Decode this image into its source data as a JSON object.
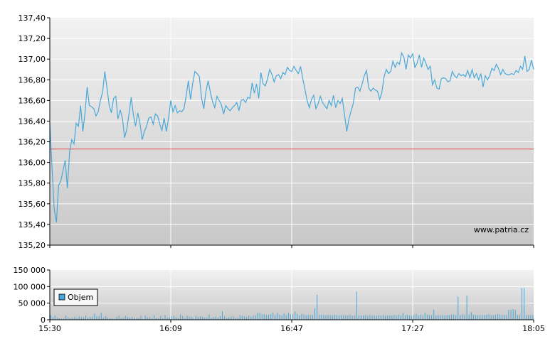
{
  "watermark": "www.patria.cz",
  "colors": {
    "price_line": "#4aa8d8",
    "reference_line": "#e05050",
    "volume_bar": "#4aa8d8",
    "plot_bg_top": "#f2f2f2",
    "plot_bg_bottom": "#c8c8c8",
    "grid": "#ffffff"
  },
  "chart_data": [
    {
      "type": "line",
      "name": "price-chart",
      "ylim": [
        135.2,
        137.4
      ],
      "yticks": [
        "135,20",
        "135,40",
        "135,60",
        "135,80",
        "136,00",
        "136,20",
        "136,40",
        "136,60",
        "136,80",
        "137,00",
        "137,20",
        "137,40"
      ],
      "xticks": [
        "15:30",
        "16:09",
        "16:47",
        "17:27",
        "18:05"
      ],
      "reference_value": 136.13,
      "grid": true,
      "series": [
        {
          "values": [
            136.38,
            135.95,
            135.55,
            135.42,
            135.78,
            135.82,
            135.92,
            136.02,
            135.75,
            136.1,
            136.22,
            136.18,
            136.38,
            136.35,
            136.55,
            136.3,
            136.48,
            136.73,
            136.55,
            136.54,
            136.52,
            136.45,
            136.49,
            136.6,
            136.68,
            136.88,
            136.72,
            136.55,
            136.48,
            136.62,
            136.64,
            136.42,
            136.51,
            136.43,
            136.24,
            136.32,
            136.47,
            136.63,
            136.46,
            136.35,
            136.48,
            136.38,
            136.22,
            136.3,
            136.35,
            136.43,
            136.44,
            136.37,
            136.47,
            136.45,
            136.37,
            136.31,
            136.43,
            136.3,
            136.43,
            136.6,
            136.49,
            136.55,
            136.48,
            136.5,
            136.49,
            136.52,
            136.64,
            136.79,
            136.61,
            136.77,
            136.88,
            136.86,
            136.83,
            136.62,
            136.52,
            136.69,
            136.79,
            136.68,
            136.59,
            136.53,
            136.64,
            136.6,
            136.56,
            136.47,
            136.55,
            136.52,
            136.5,
            136.53,
            136.55,
            136.58,
            136.5,
            136.6,
            136.61,
            136.58,
            136.63,
            136.62,
            136.77,
            136.67,
            136.76,
            136.62,
            136.87,
            136.76,
            136.74,
            136.81,
            136.9,
            136.85,
            136.78,
            136.84,
            136.85,
            136.81,
            136.87,
            136.85,
            136.92,
            136.89,
            136.88,
            136.93,
            136.89,
            136.86,
            136.93,
            136.81,
            136.71,
            136.6,
            136.53,
            136.61,
            136.65,
            136.52,
            136.57,
            136.64,
            136.58,
            136.55,
            136.52,
            136.6,
            136.55,
            136.65,
            136.53,
            136.6,
            136.57,
            136.62,
            136.46,
            136.3,
            136.42,
            136.5,
            136.57,
            136.72,
            136.73,
            136.69,
            136.76,
            136.84,
            136.89,
            136.72,
            136.69,
            136.72,
            136.7,
            136.69,
            136.61,
            136.68,
            136.83,
            136.9,
            136.86,
            136.88,
            136.98,
            136.92,
            136.97,
            136.95,
            137.06,
            137.02,
            136.9,
            137.04,
            137.01,
            137.05,
            136.92,
            136.96,
            137.04,
            136.92,
            137.01,
            136.96,
            136.9,
            136.93,
            136.75,
            136.8,
            136.72,
            136.71,
            136.81,
            136.82,
            136.81,
            136.78,
            136.79,
            136.88,
            136.84,
            136.82,
            136.86,
            136.84,
            136.85,
            136.83,
            136.89,
            136.82,
            136.9,
            136.82,
            136.86,
            136.8,
            136.86,
            136.73,
            136.84,
            136.8,
            136.84,
            136.91,
            136.89,
            136.95,
            136.91,
            136.85,
            136.9,
            136.86,
            136.85,
            136.85,
            136.86,
            136.85,
            136.89,
            136.87,
            136.93,
            136.9,
            137.03,
            136.88,
            136.9,
            136.99,
            136.9
          ]
        }
      ]
    },
    {
      "type": "bar",
      "name": "volume-chart",
      "ylim": [
        0,
        150000
      ],
      "yticks": [
        "0",
        "50 000",
        "100 000",
        "150 000"
      ],
      "xticks": [
        "15:30",
        "16:09",
        "16:47",
        "17:27",
        "18:05"
      ],
      "legend": "Objem",
      "legend_placement": "middle-left",
      "grid": true,
      "series": [
        {
          "name": "Objem",
          "values": [
            14000,
            8000,
            13000,
            6000,
            4000,
            3000,
            3000,
            13000,
            7000,
            4000,
            6000,
            9000,
            5000,
            10000,
            8000,
            7000,
            13000,
            6000,
            9000,
            10000,
            19000,
            10000,
            11000,
            22000,
            6000,
            11000,
            6000,
            4000,
            3000,
            2000,
            8000,
            12000,
            4000,
            6000,
            12000,
            8000,
            5000,
            8000,
            6000,
            3000,
            5000,
            12000,
            2000,
            12000,
            7000,
            8000,
            3000,
            14000,
            5000,
            4000,
            11000,
            4000,
            14000,
            6000,
            8000,
            10000,
            12000,
            7000,
            4000,
            15000,
            11000,
            5000,
            12000,
            9000,
            9000,
            4000,
            11000,
            8000,
            10000,
            9000,
            6000,
            7000,
            15000,
            6000,
            8000,
            9000,
            7000,
            11000,
            26000,
            10000,
            5000,
            7000,
            9000,
            10000,
            5000,
            6000,
            14000,
            12000,
            10000,
            8000,
            12000,
            9000,
            12000,
            13000,
            21000,
            21000,
            16000,
            17000,
            14000,
            15000,
            17000,
            22000,
            14000,
            21000,
            15000,
            13000,
            19000,
            14000,
            21000,
            16000,
            17000,
            25000,
            18000,
            13000,
            17000,
            16000,
            13000,
            15000,
            15000,
            14000,
            34000,
            75000,
            15000,
            15000,
            14000,
            14000,
            14000,
            14000,
            13000,
            15000,
            14000,
            13000,
            14000,
            14000,
            13000,
            13000,
            15000,
            12000,
            13000,
            85000,
            13000,
            13000,
            13000,
            14000,
            12000,
            14000,
            12000,
            12000,
            12000,
            14000,
            13000,
            14000,
            12000,
            13000,
            13000,
            13000,
            15000,
            13000,
            15000,
            13000,
            20000,
            13000,
            15000,
            13000,
            12000,
            14000,
            17000,
            13000,
            15000,
            14000,
            21000,
            15000,
            14000,
            14000,
            31000,
            13000,
            14000,
            13000,
            14000,
            13000,
            14000,
            14000,
            15000,
            16000,
            14000,
            70000,
            14000,
            16000,
            14000,
            73000,
            15000,
            23000,
            15000,
            14000,
            13000,
            14000,
            14000,
            14000,
            15000,
            16000,
            14000,
            14000,
            15000,
            17000,
            16000,
            15000,
            14000,
            14000,
            30000,
            30000,
            32000,
            30000,
            14000,
            14000,
            96000,
            95000,
            14000,
            14000,
            14000,
            14000
          ]
        }
      ]
    }
  ]
}
